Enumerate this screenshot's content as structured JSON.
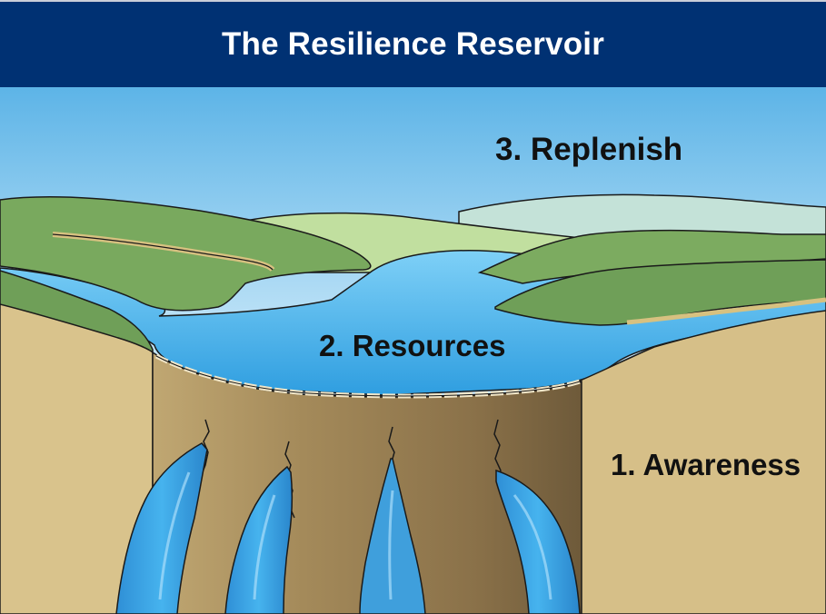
{
  "title": "The Resilience Reservoir",
  "labels": {
    "replenish": "3. Replenish",
    "resources": "2. Resources",
    "awareness": "1. Awareness"
  },
  "colors": {
    "header_bg": "#003173",
    "sky_top": "#5eb5e8",
    "sky_bottom": "#dcf0fb",
    "water": "#46b0ea",
    "hill_green": "#7aa762",
    "cliff": "#d9c28b"
  },
  "icons": [
    "reservoir-illustration-icon",
    "waterfall-icon",
    "dam-wall-icon"
  ]
}
